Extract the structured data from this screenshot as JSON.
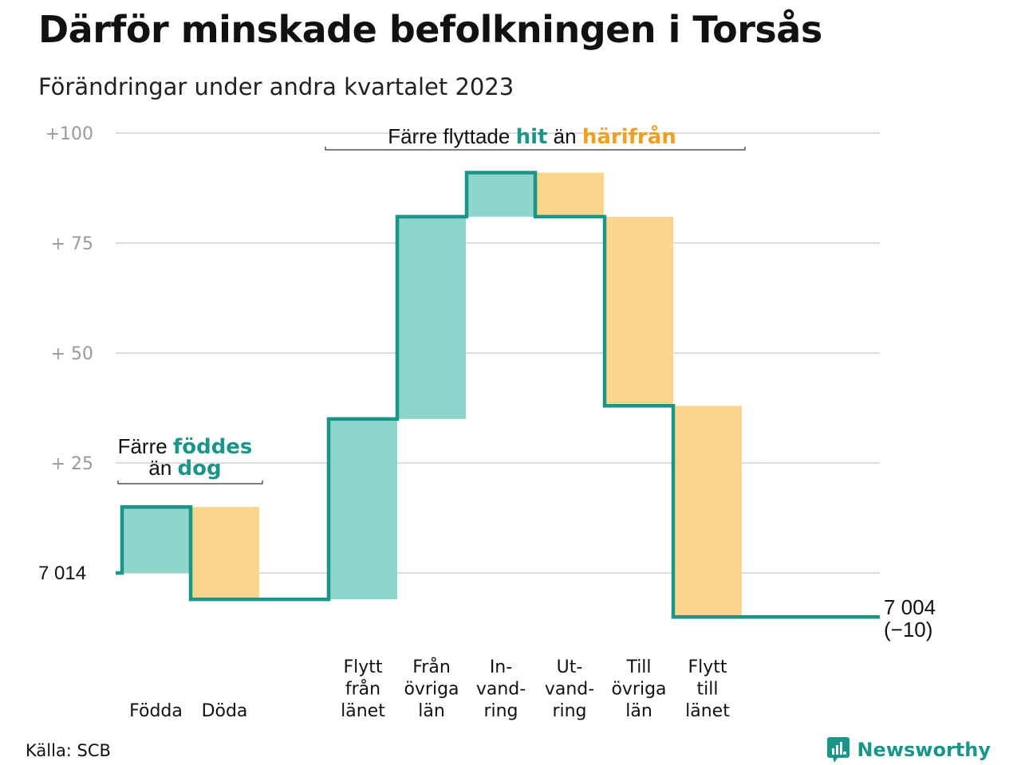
{
  "title": "Därför minskade befolkningen i Torsås",
  "subtitle": "Förändringar under andra kvartalet 2023",
  "source": "Källa: SCB",
  "brand": "Newsworthy",
  "colors": {
    "inflow": "#8dd4cb",
    "outflow": "#fad68d",
    "line": "#1a9688",
    "in_text": "#1a9688",
    "out_text": "#f0a020"
  },
  "chart_data": {
    "type": "waterfall",
    "baseline": 7014,
    "baseline_label": "7  014",
    "end_label": [
      "7 004",
      "(−10)"
    ],
    "y_axis_relative_range": [
      -10,
      100
    ],
    "y_ticks": [
      {
        "value": 0,
        "label": ""
      },
      {
        "value": 25,
        "label": "+  25"
      },
      {
        "value": 50,
        "label": "+  50"
      },
      {
        "value": 75,
        "label": "+  75"
      },
      {
        "value": 100,
        "label": "+100"
      }
    ],
    "steps": [
      {
        "name": "Födda",
        "label_lines": [
          "Födda"
        ],
        "delta": 15,
        "kind": "in"
      },
      {
        "name": "Döda",
        "label_lines": [
          "Döda"
        ],
        "delta": -21,
        "kind": "out"
      },
      {
        "name": "Flytt från länet",
        "label_lines": [
          "Flytt",
          "från",
          "länet"
        ],
        "delta": 41,
        "kind": "in"
      },
      {
        "name": "Från övriga län",
        "label_lines": [
          "Från",
          "övriga",
          "län"
        ],
        "delta": 46,
        "kind": "in"
      },
      {
        "name": "Invandring",
        "label_lines": [
          "In-",
          "vand-",
          "ring"
        ],
        "delta": 10,
        "kind": "in"
      },
      {
        "name": "Utvandring",
        "label_lines": [
          "Ut-",
          "vand-",
          "ring"
        ],
        "delta": -10,
        "kind": "out"
      },
      {
        "name": "Till övriga län",
        "label_lines": [
          "Till",
          "övriga",
          "län"
        ],
        "delta": -43,
        "kind": "out"
      },
      {
        "name": "Flytt till länet",
        "label_lines": [
          "Flytt",
          "till",
          "länet"
        ],
        "delta": -48,
        "kind": "out"
      }
    ],
    "annotations": [
      {
        "lines": [
          [
            "Färre ",
            "föddes"
          ],
          [
            "än ",
            "dog"
          ]
        ],
        "covers": [
          "Födda",
          "Döda"
        ]
      },
      {
        "lines": [
          [
            "Färre flyttade ",
            "hit",
            " än ",
            "härifrån"
          ]
        ],
        "covers": [
          "Flytt från länet",
          "Flytt till länet"
        ]
      }
    ]
  }
}
